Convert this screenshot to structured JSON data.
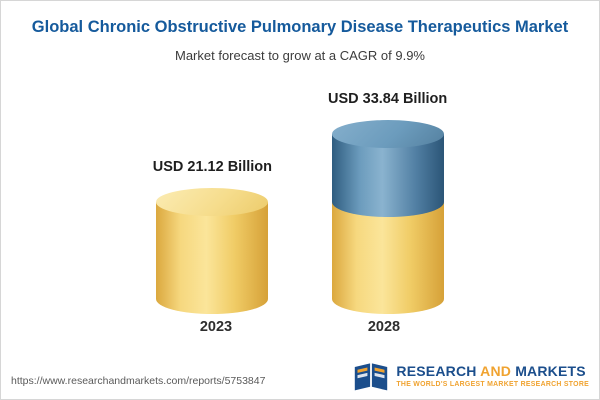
{
  "header": {
    "title": "Global Chronic Obstructive Pulmonary Disease Therapeutics Market",
    "subtitle": "Market forecast to grow at a CAGR of 9.9%"
  },
  "chart_data": {
    "type": "bar",
    "categories": [
      "2023",
      "2028"
    ],
    "values": [
      21.12,
      33.84
    ],
    "value_labels": [
      "USD 21.12 Billion",
      "USD 33.84 Billion"
    ],
    "unit": "USD Billion",
    "title": "Global Chronic Obstructive Pulmonary Disease Therapeutics Market",
    "subtitle": "Market forecast to grow at a CAGR of 9.9%",
    "cagr_percent": 9.9,
    "ylim": [
      0,
      34
    ],
    "grid": false,
    "legend_position": "none",
    "bar_style": "3d-cylinder",
    "colors": {
      "base_segment": "#f0cc66",
      "growth_segment": "#5b8cb0",
      "title_text": "#155a9c"
    },
    "notes": "2028 cylinder shows portion above 2023 value as blue growth segment"
  },
  "footer": {
    "url": "https://www.researchandmarkets.com/reports/5753847",
    "logo": {
      "word1": "RESEARCH",
      "word2": "AND",
      "word3": "MARKETS",
      "tagline": "THE WORLD'S LARGEST MARKET RESEARCH STORE"
    }
  }
}
